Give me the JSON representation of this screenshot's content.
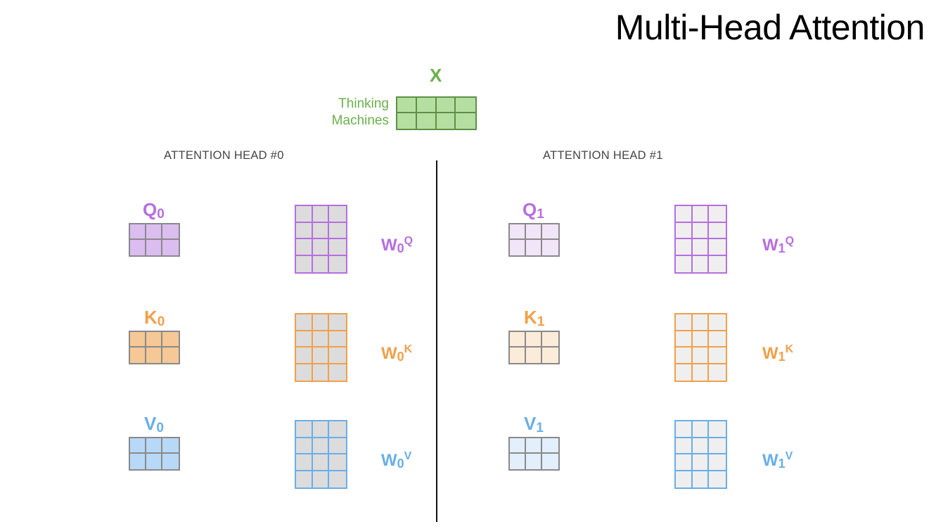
{
  "title": "Multi-Head Attention",
  "input": {
    "label": "X",
    "tokens": [
      "Thinking",
      "Machines"
    ],
    "color": "#6ab04c",
    "fill": "#b4dfa0",
    "border": "#5e8f4a"
  },
  "heads": [
    {
      "title": "ATTENTION HEAD #0",
      "q": {
        "name": "Q",
        "index": "0"
      },
      "k": {
        "name": "K",
        "index": "0"
      },
      "v": {
        "name": "V",
        "index": "0"
      },
      "wq": {
        "name": "W",
        "index": "0",
        "sup": "Q"
      },
      "wk": {
        "name": "W",
        "index": "0",
        "sup": "K"
      },
      "wv": {
        "name": "W",
        "index": "0",
        "sup": "V"
      }
    },
    {
      "title": "ATTENTION HEAD #1",
      "q": {
        "name": "Q",
        "index": "1"
      },
      "k": {
        "name": "K",
        "index": "1"
      },
      "v": {
        "name": "V",
        "index": "1"
      },
      "wq": {
        "name": "W",
        "index": "1",
        "sup": "Q"
      },
      "wk": {
        "name": "W",
        "index": "1",
        "sup": "K"
      },
      "wv": {
        "name": "W",
        "index": "1",
        "sup": "V"
      }
    }
  ],
  "colors": {
    "query": "#b66ee0",
    "key": "#f0a04b",
    "value": "#6aaee8",
    "weight_fill": "#dcdcdc",
    "head0_fill": {
      "q": "#dbbdf0",
      "k": "#f5c896",
      "v": "#b8d8f7"
    },
    "head1_fill": {
      "q": "#f1e5f8",
      "k": "#fcebd8",
      "v": "#e3effc"
    },
    "head1_weight_fill": "#efefef",
    "matrix_border": "#8a8a8a"
  }
}
